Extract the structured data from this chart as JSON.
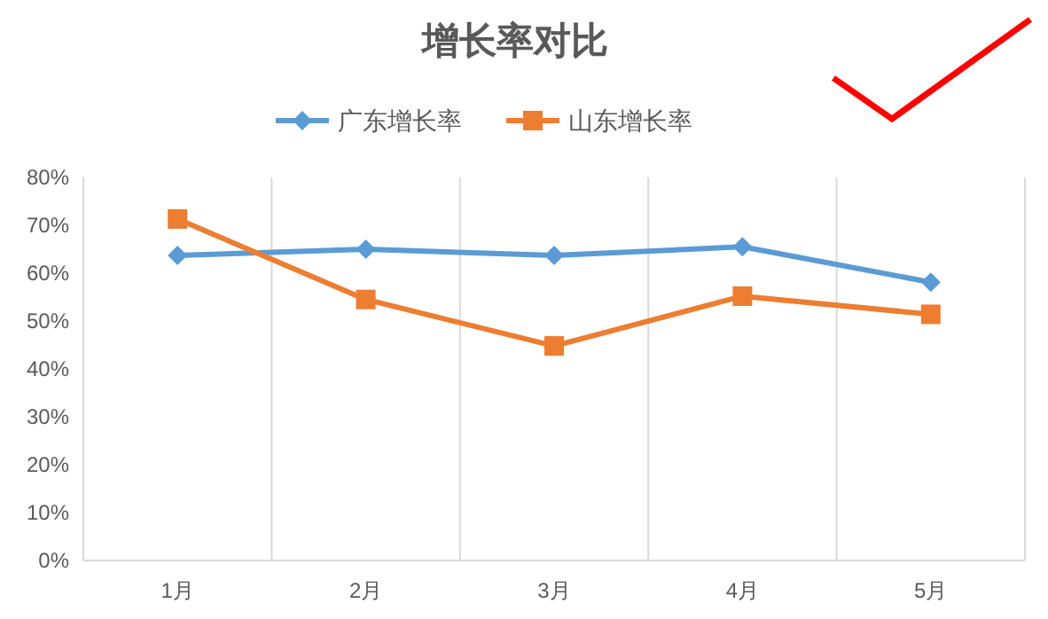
{
  "chart_data": {
    "type": "line",
    "title": "增长率对比",
    "categories": [
      "1月",
      "2月",
      "3月",
      "4月",
      "5月"
    ],
    "series": [
      {
        "name": "广东增长率",
        "color": "#5b9bd5",
        "marker": "diamond",
        "values": [
          63.7,
          65,
          63.7,
          65.5,
          58.1
        ]
      },
      {
        "name": "山东增长率",
        "color": "#ed7d31",
        "marker": "square",
        "values": [
          71.3,
          54.5,
          44.8,
          55.2,
          51.4
        ]
      }
    ],
    "ylim": [
      0,
      80
    ],
    "yticks": [
      {
        "value": 0,
        "label": "0%"
      },
      {
        "value": 10,
        "label": "10%"
      },
      {
        "value": 20,
        "label": "20%"
      },
      {
        "value": 30,
        "label": "30%"
      },
      {
        "value": 40,
        "label": "40%"
      },
      {
        "value": 50,
        "label": "50%"
      },
      {
        "value": 60,
        "label": "60%"
      },
      {
        "value": 70,
        "label": "70%"
      },
      {
        "value": 80,
        "label": "80%"
      }
    ],
    "grid": "x",
    "legend": "top",
    "line_style": "solid"
  }
}
